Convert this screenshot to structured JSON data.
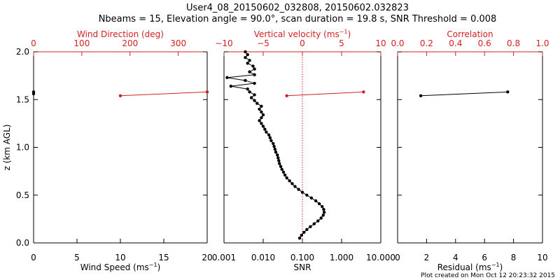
{
  "colors": {
    "black": "#000000",
    "red": "#d42020",
    "background": "#ffffff"
  },
  "title_line1": "User4_08_20150602_032808, 20150602.032823",
  "title_line2": "Nbeams = 15, Elevation angle = 90.0°, scan duration = 19.8 s, SNR Threshold = 0.008",
  "footer": "Plot created on Mon Oct 12 20:23:32 2015",
  "chart_data": [
    {
      "type": "line",
      "panel": "left",
      "ylabel": "z (km AGL)",
      "ylim": [
        0.0,
        2.0
      ],
      "yticks": [
        "0.0",
        "0.5",
        "1.0",
        "1.5",
        "2.0"
      ],
      "bottom_axis": {
        "label": "Wind Speed (ms",
        "unit_sup": "−1",
        "label_end": ")",
        "xlim": [
          0,
          20
        ],
        "ticks": [
          "0",
          "5",
          "10",
          "15",
          "20"
        ]
      },
      "top_axis": {
        "label": "Wind Direction (deg)",
        "color": "#d42020",
        "xlim": [
          0,
          360
        ],
        "ticks": [
          "0",
          "100",
          "200",
          "300"
        ]
      },
      "series": [
        {
          "axis": "bottom",
          "color": "#000000",
          "points": [
            [
              0.0,
              1.56
            ],
            [
              0.0,
              1.58
            ]
          ]
        },
        {
          "axis": "top",
          "color": "#d42020",
          "points": [
            [
              180,
              1.54
            ],
            [
              360,
              1.58
            ]
          ]
        }
      ]
    },
    {
      "type": "line",
      "panel": "middle",
      "ylim": [
        0.0,
        2.0
      ],
      "bottom_axis": {
        "label": "SNR",
        "scale": "log",
        "xlim": [
          0.001,
          10.0
        ],
        "ticks": [
          "0.001",
          "0.010",
          "0.100",
          "1.000",
          "10.000"
        ]
      },
      "top_axis": {
        "label": "Vertical velocity (ms",
        "unit_sup": "−1",
        "label_end": ")",
        "color": "#d42020",
        "xlim": [
          -10,
          10
        ],
        "ticks": [
          "−10",
          "−5",
          "0",
          "5",
          "10"
        ]
      },
      "threshold_line": {
        "snr": 0.1,
        "color": "#d42020",
        "style": "dotted"
      },
      "series": [
        {
          "axis": "bottom",
          "color": "#000000",
          "points": [
            [
              0.085,
              0.05
            ],
            [
              0.095,
              0.08
            ],
            [
              0.11,
              0.11
            ],
            [
              0.13,
              0.14
            ],
            [
              0.16,
              0.17
            ],
            [
              0.2,
              0.2
            ],
            [
              0.25,
              0.23
            ],
            [
              0.3,
              0.26
            ],
            [
              0.34,
              0.29
            ],
            [
              0.36,
              0.32
            ],
            [
              0.35,
              0.35
            ],
            [
              0.32,
              0.38
            ],
            [
              0.27,
              0.41
            ],
            [
              0.22,
              0.44
            ],
            [
              0.17,
              0.47
            ],
            [
              0.13,
              0.5
            ],
            [
              0.1,
              0.53
            ],
            [
              0.08,
              0.56
            ],
            [
              0.065,
              0.59
            ],
            [
              0.055,
              0.62
            ],
            [
              0.047,
              0.65
            ],
            [
              0.04,
              0.68
            ],
            [
              0.036,
              0.71
            ],
            [
              0.033,
              0.74
            ],
            [
              0.03,
              0.77
            ],
            [
              0.028,
              0.8
            ],
            [
              0.026,
              0.83
            ],
            [
              0.025,
              0.86
            ],
            [
              0.024,
              0.89
            ],
            [
              0.023,
              0.92
            ],
            [
              0.021,
              0.95
            ],
            [
              0.02,
              0.98
            ],
            [
              0.019,
              1.01
            ],
            [
              0.018,
              1.04
            ],
            [
              0.016,
              1.07
            ],
            [
              0.015,
              1.1
            ],
            [
              0.014,
              1.13
            ],
            [
              0.012,
              1.16
            ],
            [
              0.011,
              1.19
            ],
            [
              0.01,
              1.22
            ],
            [
              0.009,
              1.25
            ],
            [
              0.008,
              1.28
            ],
            [
              0.009,
              1.31
            ],
            [
              0.01,
              1.34
            ],
            [
              0.009,
              1.37
            ],
            [
              0.008,
              1.4
            ],
            [
              0.009,
              1.43
            ],
            [
              0.007,
              1.46
            ],
            [
              0.006,
              1.49
            ],
            [
              0.005,
              1.52
            ],
            [
              0.006,
              1.55
            ],
            [
              0.0045,
              1.58
            ],
            [
              0.004,
              1.61
            ],
            [
              0.0015,
              1.64
            ],
            [
              0.006,
              1.67
            ],
            [
              0.0035,
              1.7
            ],
            [
              0.0012,
              1.73
            ],
            [
              0.006,
              1.76
            ],
            [
              0.0045,
              1.79
            ],
            [
              0.006,
              1.82
            ],
            [
              0.0055,
              1.85
            ],
            [
              0.004,
              1.88
            ],
            [
              0.0045,
              1.91
            ],
            [
              0.0035,
              1.94
            ],
            [
              0.004,
              1.97
            ],
            [
              0.0035,
              2.0
            ]
          ]
        },
        {
          "axis": "top",
          "color": "#d42020",
          "points": [
            [
              -2.0,
              1.54
            ],
            [
              7.8,
              1.58
            ]
          ]
        }
      ]
    },
    {
      "type": "line",
      "panel": "right",
      "ylim": [
        0.0,
        2.0
      ],
      "bottom_axis": {
        "label": "Residual (ms",
        "unit_sup": "−1",
        "label_end": ")",
        "xlim": [
          0,
          10
        ],
        "ticks": [
          "0",
          "2",
          "4",
          "6",
          "8",
          "10"
        ]
      },
      "top_axis": {
        "label": "Correlation",
        "color": "#d42020",
        "xlim": [
          0.0,
          1.0
        ],
        "ticks": [
          "0.0",
          "0.2",
          "0.4",
          "0.6",
          "0.8",
          "1.0"
        ]
      },
      "series": [
        {
          "axis": "bottom",
          "color": "#000000",
          "points": [
            [
              1.6,
              1.54
            ],
            [
              7.6,
              1.58
            ]
          ]
        }
      ]
    }
  ]
}
